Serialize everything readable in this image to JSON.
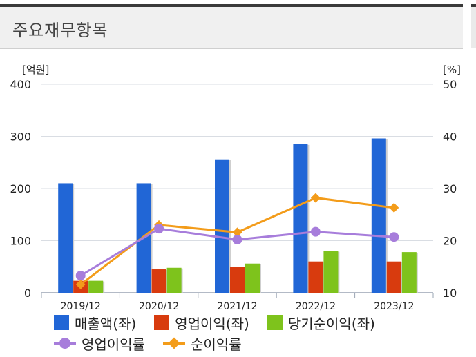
{
  "header": {
    "title": "주요재무항목"
  },
  "colors": {
    "sales": "#2166d6",
    "op_income": "#d83b0e",
    "net_income": "#7ec31c",
    "op_margin": "#a77ddb",
    "net_margin": "#f39c1a"
  },
  "chart_data": {
    "type": "bar",
    "categories": [
      "2019/12",
      "2020/12",
      "2021/12",
      "2022/12",
      "2023/12"
    ],
    "left_axis": {
      "unit": "[억원]",
      "ylim": [
        0,
        400
      ],
      "ticks": [
        0,
        100,
        200,
        300,
        400
      ]
    },
    "right_axis": {
      "unit": "[%]",
      "ylim": [
        10,
        50
      ],
      "ticks": [
        10,
        20,
        30,
        40,
        50
      ]
    },
    "bar_series": [
      {
        "name": "매출액(좌)",
        "values": [
          210,
          210,
          256,
          285,
          296
        ]
      },
      {
        "name": "영업이익(좌)",
        "values": [
          23,
          45,
          50,
          60,
          60
        ]
      },
      {
        "name": "당기순이익(좌)",
        "values": [
          23,
          48,
          56,
          80,
          78
        ]
      }
    ],
    "line_series": [
      {
        "name": "영업이익률",
        "marker": "circle",
        "values": [
          13.3,
          22.3,
          20.2,
          21.7,
          20.7
        ]
      },
      {
        "name": "순이익률",
        "marker": "diamond",
        "values": [
          11.6,
          23.0,
          21.6,
          28.2,
          26.3
        ]
      }
    ],
    "grid": true,
    "legend_placement": "bottom"
  }
}
